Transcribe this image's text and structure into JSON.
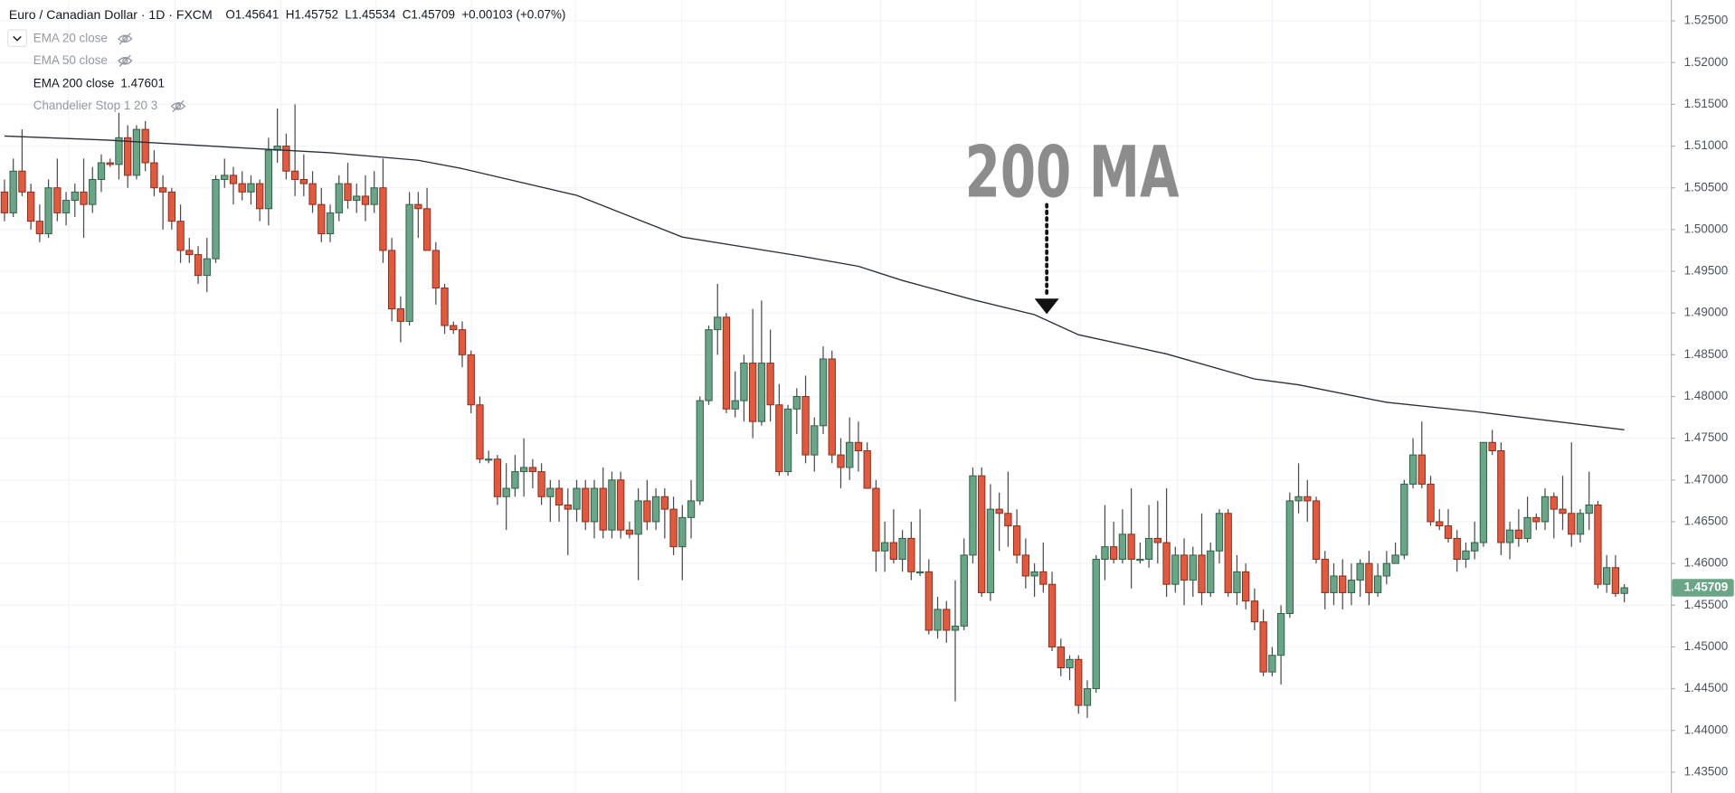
{
  "chart_data": {
    "type": "candlestick",
    "symbol": "Euro / Canadian Dollar · 1D · FXCM",
    "header": [
      "O1.45641",
      "H1.45752",
      "L1.45534",
      "C1.45709",
      "+0.00103 (+0.07%)"
    ],
    "indicators": [
      {
        "name": "EMA 20 close"
      },
      {
        "name": "EMA 50 close"
      },
      {
        "name": "EMA 200 close",
        "value": "1.47601"
      },
      {
        "name": "Chandelier Stop 1 20 3"
      }
    ],
    "annotation": "200 MA",
    "up_color": "#6ba587",
    "down_color": "#e05a3f",
    "ylim": [
      1.4325,
      1.5275
    ],
    "yticks": [
      {
        "value": 1.525,
        "label": "1.52500"
      },
      {
        "value": 1.52,
        "label": "1.52000"
      },
      {
        "value": 1.515,
        "label": "1.51500"
      },
      {
        "value": 1.51,
        "label": "1.51000"
      },
      {
        "value": 1.505,
        "label": "1.50500"
      },
      {
        "value": 1.5,
        "label": "1.50000"
      },
      {
        "value": 1.495,
        "label": "1.49500"
      },
      {
        "value": 1.49,
        "label": "1.49000"
      },
      {
        "value": 1.485,
        "label": "1.48500"
      },
      {
        "value": 1.48,
        "label": "1.48000"
      },
      {
        "value": 1.475,
        "label": "1.47500"
      },
      {
        "value": 1.47,
        "label": "1.47000"
      },
      {
        "value": 1.465,
        "label": "1.46500"
      },
      {
        "value": 1.46,
        "label": "1.46000"
      },
      {
        "value": 1.455,
        "label": "1.45500"
      },
      {
        "value": 1.45,
        "label": "1.45000"
      },
      {
        "value": 1.445,
        "label": "1.44500"
      },
      {
        "value": 1.44,
        "label": "1.44000"
      },
      {
        "value": 1.435,
        "label": "1.43500"
      }
    ],
    "last_price": {
      "value": 1.45709,
      "label": "1.45709"
    },
    "candles": [
      [
        1.5045,
        1.506,
        1.501,
        1.502
      ],
      [
        1.502,
        1.5085,
        1.5015,
        1.507
      ],
      [
        1.507,
        1.512,
        1.504,
        1.5045
      ],
      [
        1.5045,
        1.5055,
        1.5,
        1.501
      ],
      [
        1.501,
        1.503,
        1.4985,
        1.4995
      ],
      [
        1.4995,
        1.506,
        1.499,
        1.505
      ],
      [
        1.505,
        1.5085,
        1.501,
        1.502
      ],
      [
        1.502,
        1.5045,
        1.5005,
        1.5035
      ],
      [
        1.5035,
        1.5055,
        1.5015,
        1.5045
      ],
      [
        1.5045,
        1.5085,
        1.499,
        1.503
      ],
      [
        1.503,
        1.5075,
        1.502,
        1.506
      ],
      [
        1.506,
        1.509,
        1.5045,
        1.508
      ],
      [
        1.508,
        1.5085,
        1.5075,
        1.5078
      ],
      [
        1.5078,
        1.514,
        1.506,
        1.511
      ],
      [
        1.511,
        1.5125,
        1.505,
        1.5065
      ],
      [
        1.5065,
        1.5125,
        1.506,
        1.512
      ],
      [
        1.512,
        1.513,
        1.507,
        1.508
      ],
      [
        1.508,
        1.5095,
        1.504,
        1.505
      ],
      [
        1.505,
        1.5065,
        1.5,
        1.5045
      ],
      [
        1.5045,
        1.505,
        1.5,
        1.501
      ],
      [
        1.501,
        1.503,
        1.496,
        1.4975
      ],
      [
        1.4975,
        1.499,
        1.496,
        1.497
      ],
      [
        1.497,
        1.498,
        1.4935,
        1.4945
      ],
      [
        1.4945,
        1.499,
        1.4925,
        1.4965
      ],
      [
        1.4965,
        1.5065,
        1.496,
        1.506
      ],
      [
        1.506,
        1.5085,
        1.505,
        1.5065
      ],
      [
        1.5065,
        1.5075,
        1.503,
        1.5055
      ],
      [
        1.5055,
        1.507,
        1.5035,
        1.5045
      ],
      [
        1.5045,
        1.5065,
        1.503,
        1.5055
      ],
      [
        1.5055,
        1.506,
        1.501,
        1.5025
      ],
      [
        1.5025,
        1.511,
        1.5005,
        1.5095
      ],
      [
        1.5095,
        1.5145,
        1.508,
        1.51
      ],
      [
        1.51,
        1.5115,
        1.506,
        1.507
      ],
      [
        1.507,
        1.515,
        1.504,
        1.506
      ],
      [
        1.506,
        1.509,
        1.504,
        1.5055
      ],
      [
        1.5055,
        1.507,
        1.502,
        1.503
      ],
      [
        1.503,
        1.505,
        1.4985,
        1.4995
      ],
      [
        1.4995,
        1.503,
        1.4985,
        1.502
      ],
      [
        1.502,
        1.5065,
        1.501,
        1.5055
      ],
      [
        1.5055,
        1.508,
        1.5025,
        1.5035
      ],
      [
        1.5035,
        1.5055,
        1.502,
        1.504
      ],
      [
        1.504,
        1.5065,
        1.501,
        1.503
      ],
      [
        1.503,
        1.507,
        1.502,
        1.505
      ],
      [
        1.505,
        1.5085,
        1.496,
        1.4975
      ],
      [
        1.4975,
        1.499,
        1.489,
        1.4905
      ],
      [
        1.4905,
        1.492,
        1.4865,
        1.489
      ],
      [
        1.489,
        1.5045,
        1.4885,
        1.503
      ],
      [
        1.503,
        1.5045,
        1.499,
        1.5025
      ],
      [
        1.5025,
        1.505,
        1.4975,
        1.4975
      ],
      [
        1.4975,
        1.4985,
        1.491,
        1.493
      ],
      [
        1.493,
        1.4935,
        1.4875,
        1.4885
      ],
      [
        1.4885,
        1.489,
        1.4875,
        1.488
      ],
      [
        1.488,
        1.489,
        1.4835,
        1.485
      ],
      [
        1.485,
        1.4855,
        1.478,
        1.479
      ],
      [
        1.479,
        1.48,
        1.472,
        1.4725
      ],
      [
        1.4725,
        1.4735,
        1.472,
        1.4725
      ],
      [
        1.4725,
        1.473,
        1.467,
        1.468
      ],
      [
        1.468,
        1.472,
        1.464,
        1.469
      ],
      [
        1.469,
        1.473,
        1.468,
        1.471
      ],
      [
        1.471,
        1.475,
        1.468,
        1.4715
      ],
      [
        1.4715,
        1.4725,
        1.469,
        1.471
      ],
      [
        1.471,
        1.472,
        1.467,
        1.468
      ],
      [
        1.468,
        1.47,
        1.465,
        1.469
      ],
      [
        1.469,
        1.47,
        1.465,
        1.467
      ],
      [
        1.467,
        1.469,
        1.461,
        1.4665
      ],
      [
        1.4665,
        1.47,
        1.465,
        1.469
      ],
      [
        1.469,
        1.47,
        1.464,
        1.465
      ],
      [
        1.465,
        1.47,
        1.463,
        1.469
      ],
      [
        1.469,
        1.4715,
        1.463,
        1.464
      ],
      [
        1.464,
        1.471,
        1.463,
        1.47
      ],
      [
        1.47,
        1.471,
        1.463,
        1.464
      ],
      [
        1.464,
        1.465,
        1.463,
        1.4635
      ],
      [
        1.4635,
        1.469,
        1.458,
        1.4675
      ],
      [
        1.4675,
        1.47,
        1.464,
        1.465
      ],
      [
        1.465,
        1.469,
        1.464,
        1.468
      ],
      [
        1.468,
        1.469,
        1.463,
        1.4665
      ],
      [
        1.4665,
        1.468,
        1.461,
        1.462
      ],
      [
        1.462,
        1.467,
        1.458,
        1.4655
      ],
      [
        1.4655,
        1.47,
        1.463,
        1.4675
      ],
      [
        1.4675,
        1.48,
        1.467,
        1.4795
      ],
      [
        1.4795,
        1.4885,
        1.479,
        1.488
      ],
      [
        1.488,
        1.4935,
        1.485,
        1.4895
      ],
      [
        1.4895,
        1.49,
        1.478,
        1.4785
      ],
      [
        1.4785,
        1.483,
        1.4775,
        1.4795
      ],
      [
        1.4795,
        1.485,
        1.477,
        1.484
      ],
      [
        1.484,
        1.4905,
        1.475,
        1.477
      ],
      [
        1.477,
        1.4915,
        1.4765,
        1.484
      ],
      [
        1.484,
        1.488,
        1.477,
        1.479
      ],
      [
        1.479,
        1.4815,
        1.4705,
        1.471
      ],
      [
        1.471,
        1.479,
        1.4705,
        1.4785
      ],
      [
        1.4785,
        1.481,
        1.4755,
        1.48
      ],
      [
        1.48,
        1.4825,
        1.472,
        1.473
      ],
      [
        1.473,
        1.4775,
        1.471,
        1.4765
      ],
      [
        1.4765,
        1.486,
        1.4755,
        1.4845
      ],
      [
        1.4845,
        1.4855,
        1.472,
        1.473
      ],
      [
        1.473,
        1.475,
        1.469,
        1.4715
      ],
      [
        1.4715,
        1.4775,
        1.47,
        1.4745
      ],
      [
        1.4745,
        1.477,
        1.471,
        1.4735
      ],
      [
        1.4735,
        1.4745,
        1.469,
        1.469
      ],
      [
        1.469,
        1.47,
        1.459,
        1.4615
      ],
      [
        1.4615,
        1.465,
        1.459,
        1.4625
      ],
      [
        1.4625,
        1.4665,
        1.46,
        1.4605
      ],
      [
        1.4605,
        1.464,
        1.459,
        1.463
      ],
      [
        1.463,
        1.465,
        1.458,
        1.459
      ],
      [
        1.459,
        1.4665,
        1.4585,
        1.459
      ],
      [
        1.459,
        1.4605,
        1.4515,
        1.452
      ],
      [
        1.452,
        1.456,
        1.451,
        1.4545
      ],
      [
        1.4545,
        1.4555,
        1.4505,
        1.452
      ],
      [
        1.452,
        1.458,
        1.4435,
        1.4525
      ],
      [
        1.4525,
        1.463,
        1.452,
        1.461
      ],
      [
        1.461,
        1.4715,
        1.46,
        1.4705
      ],
      [
        1.4705,
        1.4715,
        1.456,
        1.4565
      ],
      [
        1.4565,
        1.4695,
        1.4555,
        1.4665
      ],
      [
        1.4665,
        1.4685,
        1.4615,
        1.466
      ],
      [
        1.466,
        1.471,
        1.462,
        1.4645
      ],
      [
        1.4645,
        1.4665,
        1.46,
        1.461
      ],
      [
        1.461,
        1.463,
        1.457,
        1.4585
      ],
      [
        1.4585,
        1.46,
        1.456,
        1.459
      ],
      [
        1.459,
        1.4625,
        1.4565,
        1.4575
      ],
      [
        1.4575,
        1.459,
        1.4495,
        1.45
      ],
      [
        1.45,
        1.451,
        1.4465,
        1.4475
      ],
      [
        1.4475,
        1.449,
        1.446,
        1.4485
      ],
      [
        1.4485,
        1.449,
        1.442,
        1.443
      ],
      [
        1.443,
        1.446,
        1.4415,
        1.445
      ],
      [
        1.445,
        1.461,
        1.4445,
        1.4605
      ],
      [
        1.4605,
        1.467,
        1.458,
        1.462
      ],
      [
        1.462,
        1.465,
        1.46,
        1.4605
      ],
      [
        1.4605,
        1.4665,
        1.46,
        1.4635
      ],
      [
        1.4635,
        1.469,
        1.457,
        1.4605
      ],
      [
        1.4605,
        1.4625,
        1.46,
        1.4605
      ],
      [
        1.4605,
        1.467,
        1.4595,
        1.463
      ],
      [
        1.463,
        1.4675,
        1.46,
        1.4625
      ],
      [
        1.4625,
        1.469,
        1.456,
        1.4575
      ],
      [
        1.4575,
        1.462,
        1.4565,
        1.461
      ],
      [
        1.461,
        1.463,
        1.455,
        1.458
      ],
      [
        1.458,
        1.462,
        1.456,
        1.461
      ],
      [
        1.461,
        1.466,
        1.455,
        1.4565
      ],
      [
        1.4565,
        1.4625,
        1.456,
        1.4615
      ],
      [
        1.4615,
        1.4665,
        1.46,
        1.466
      ],
      [
        1.466,
        1.4665,
        1.456,
        1.4565
      ],
      [
        1.4565,
        1.461,
        1.455,
        1.459
      ],
      [
        1.459,
        1.46,
        1.4545,
        1.4555
      ],
      [
        1.4555,
        1.457,
        1.452,
        1.453
      ],
      [
        1.453,
        1.4545,
        1.4465,
        1.447
      ],
      [
        1.447,
        1.45,
        1.4465,
        1.449
      ],
      [
        1.449,
        1.455,
        1.4455,
        1.454
      ],
      [
        1.454,
        1.4685,
        1.4535,
        1.4675
      ],
      [
        1.4675,
        1.472,
        1.466,
        1.468
      ],
      [
        1.468,
        1.47,
        1.465,
        1.4675
      ],
      [
        1.4675,
        1.468,
        1.46,
        1.4605
      ],
      [
        1.4605,
        1.4615,
        1.4545,
        1.4565
      ],
      [
        1.4565,
        1.46,
        1.455,
        1.4585
      ],
      [
        1.4585,
        1.4605,
        1.4545,
        1.4565
      ],
      [
        1.4565,
        1.46,
        1.455,
        1.458
      ],
      [
        1.458,
        1.4605,
        1.456,
        1.46
      ],
      [
        1.46,
        1.4615,
        1.455,
        1.4565
      ],
      [
        1.4565,
        1.46,
        1.456,
        1.4585
      ],
      [
        1.4585,
        1.4615,
        1.4575,
        1.46
      ],
      [
        1.46,
        1.4625,
        1.46,
        1.461
      ],
      [
        1.461,
        1.47,
        1.4605,
        1.4695
      ],
      [
        1.4695,
        1.475,
        1.469,
        1.473
      ],
      [
        1.473,
        1.477,
        1.469,
        1.4695
      ],
      [
        1.4695,
        1.4705,
        1.4645,
        1.465
      ],
      [
        1.465,
        1.4665,
        1.464,
        1.4645
      ],
      [
        1.4645,
        1.4665,
        1.4625,
        1.463
      ],
      [
        1.463,
        1.464,
        1.459,
        1.4605
      ],
      [
        1.4605,
        1.4625,
        1.4595,
        1.4615
      ],
      [
        1.4615,
        1.465,
        1.4605,
        1.4625
      ],
      [
        1.4625,
        1.4745,
        1.462,
        1.4745
      ],
      [
        1.4745,
        1.476,
        1.473,
        1.4735
      ],
      [
        1.4735,
        1.4745,
        1.461,
        1.4625
      ],
      [
        1.4625,
        1.465,
        1.4605,
        1.464
      ],
      [
        1.464,
        1.4665,
        1.462,
        1.463
      ],
      [
        1.463,
        1.468,
        1.4625,
        1.4655
      ],
      [
        1.4655,
        1.466,
        1.464,
        1.465
      ],
      [
        1.465,
        1.469,
        1.464,
        1.468
      ],
      [
        1.468,
        1.4685,
        1.463,
        1.4665
      ],
      [
        1.4665,
        1.4705,
        1.464,
        1.466
      ],
      [
        1.466,
        1.4745,
        1.462,
        1.4635
      ],
      [
        1.4635,
        1.4665,
        1.4625,
        1.466
      ],
      [
        1.466,
        1.471,
        1.464,
        1.467
      ],
      [
        1.467,
        1.4675,
        1.457,
        1.4575
      ],
      [
        1.4575,
        1.461,
        1.4565,
        1.4595
      ],
      [
        1.4595,
        1.461,
        1.456,
        1.4564
      ],
      [
        1.45641,
        1.45752,
        1.45534,
        1.45709
      ]
    ],
    "ema": {
      "name": "EMA 200 close",
      "color": "#2a2e39",
      "x": [
        0,
        12,
        25,
        37,
        47,
        52,
        65,
        77,
        90,
        97,
        102,
        110,
        117,
        122,
        132,
        142,
        147,
        157,
        167,
        184
      ],
      "values": [
        1.5112,
        1.5107,
        1.5099,
        1.5092,
        1.5083,
        1.5073,
        1.5041,
        1.4991,
        1.4969,
        1.4956,
        1.4939,
        1.4916,
        1.4898,
        1.4874,
        1.4851,
        1.4821,
        1.4814,
        1.4793,
        1.4782,
        1.47601
      ]
    }
  }
}
